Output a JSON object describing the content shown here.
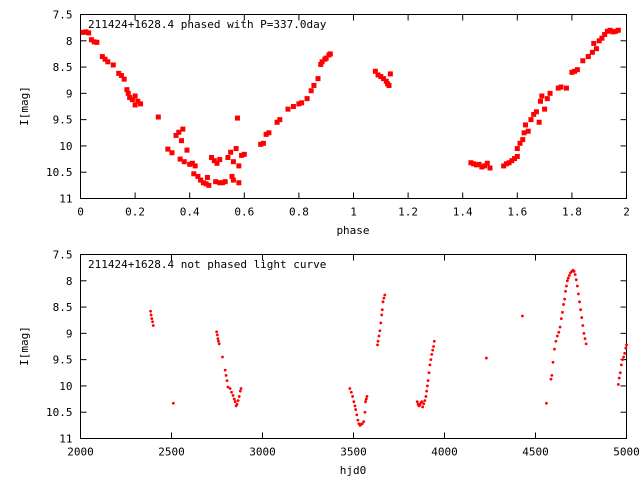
{
  "chart_data": [
    {
      "type": "scatter",
      "title": "211424+1628.4 phased with P=337.0day",
      "xlabel": "phase",
      "ylabel": "I[mag]",
      "xlim": [
        0,
        2
      ],
      "ylim": [
        7.5,
        11
      ],
      "y_inverted": true,
      "marker_color": "#ff0000",
      "x_ticks": [
        0,
        0.2,
        0.4,
        0.6,
        0.8,
        1,
        1.2,
        1.4,
        1.6,
        1.8,
        2
      ],
      "x_tick_labels": [
        "0",
        "0.2",
        "0.4",
        "0.6",
        "0.8",
        "1",
        "1.2",
        "1.4",
        "1.6",
        "1.8",
        "2"
      ],
      "y_ticks": [
        7.5,
        8,
        8.5,
        9,
        9.5,
        10,
        10.5,
        11
      ],
      "y_tick_labels": [
        "7.5",
        "8",
        "8.5",
        "9",
        "9.5",
        "10",
        "10.5",
        "11"
      ],
      "points": [
        [
          0.01,
          7.84
        ],
        [
          0.02,
          7.83
        ],
        [
          0.03,
          7.85
        ],
        [
          0.04,
          7.98
        ],
        [
          0.05,
          8.02
        ],
        [
          0.06,
          8.03
        ],
        [
          0.08,
          8.3
        ],
        [
          0.09,
          8.35
        ],
        [
          0.1,
          8.4
        ],
        [
          0.12,
          8.46
        ],
        [
          0.14,
          8.62
        ],
        [
          0.15,
          8.66
        ],
        [
          0.16,
          8.73
        ],
        [
          0.17,
          8.93
        ],
        [
          0.175,
          9.0
        ],
        [
          0.18,
          9.08
        ],
        [
          0.19,
          9.12
        ],
        [
          0.2,
          9.05
        ],
        [
          0.21,
          9.15
        ],
        [
          0.22,
          9.2
        ],
        [
          0.2,
          9.22
        ],
        [
          0.285,
          9.45
        ],
        [
          0.32,
          10.06
        ],
        [
          0.335,
          10.13
        ],
        [
          0.35,
          9.8
        ],
        [
          0.36,
          9.74
        ],
        [
          0.37,
          9.9
        ],
        [
          0.375,
          9.68
        ],
        [
          0.365,
          10.25
        ],
        [
          0.38,
          10.3
        ],
        [
          0.39,
          10.08
        ],
        [
          0.4,
          10.35
        ],
        [
          0.41,
          10.33
        ],
        [
          0.42,
          10.38
        ],
        [
          0.415,
          10.53
        ],
        [
          0.43,
          10.58
        ],
        [
          0.44,
          10.65
        ],
        [
          0.45,
          10.7
        ],
        [
          0.46,
          10.72
        ],
        [
          0.465,
          10.6
        ],
        [
          0.47,
          10.75
        ],
        [
          0.48,
          10.22
        ],
        [
          0.49,
          10.28
        ],
        [
          0.5,
          10.33
        ],
        [
          0.51,
          10.26
        ],
        [
          0.495,
          10.68
        ],
        [
          0.51,
          10.7
        ],
        [
          0.52,
          10.7
        ],
        [
          0.53,
          10.68
        ],
        [
          0.54,
          10.22
        ],
        [
          0.55,
          10.12
        ],
        [
          0.56,
          10.3
        ],
        [
          0.555,
          10.58
        ],
        [
          0.56,
          10.65
        ],
        [
          0.57,
          10.05
        ],
        [
          0.575,
          9.47
        ],
        [
          0.58,
          10.38
        ],
        [
          0.59,
          10.18
        ],
        [
          0.58,
          10.7
        ],
        [
          0.6,
          10.16
        ],
        [
          0.66,
          9.97
        ],
        [
          0.67,
          9.95
        ],
        [
          0.68,
          9.78
        ],
        [
          0.69,
          9.75
        ],
        [
          0.72,
          9.55
        ],
        [
          0.73,
          9.5
        ],
        [
          0.76,
          9.3
        ],
        [
          0.78,
          9.25
        ],
        [
          0.8,
          9.2
        ],
        [
          0.81,
          9.18
        ],
        [
          0.83,
          9.1
        ],
        [
          0.845,
          8.95
        ],
        [
          0.855,
          8.85
        ],
        [
          0.87,
          8.72
        ],
        [
          0.88,
          8.45
        ],
        [
          0.885,
          8.4
        ],
        [
          0.895,
          8.35
        ],
        [
          0.9,
          8.33
        ],
        [
          0.91,
          8.27
        ],
        [
          0.915,
          8.25
        ],
        [
          1.08,
          8.58
        ],
        [
          1.09,
          8.65
        ],
        [
          1.1,
          8.68
        ],
        [
          1.11,
          8.72
        ],
        [
          1.12,
          8.77
        ],
        [
          1.125,
          8.82
        ],
        [
          1.13,
          8.85
        ],
        [
          1.135,
          8.63
        ],
        [
          1.43,
          10.32
        ],
        [
          1.44,
          10.34
        ],
        [
          1.45,
          10.36
        ],
        [
          1.46,
          10.35
        ],
        [
          1.47,
          10.4
        ],
        [
          1.48,
          10.38
        ],
        [
          1.49,
          10.33
        ],
        [
          1.5,
          10.42
        ],
        [
          1.55,
          10.38
        ],
        [
          1.56,
          10.34
        ],
        [
          1.57,
          10.32
        ],
        [
          1.58,
          10.28
        ],
        [
          1.59,
          10.24
        ],
        [
          1.6,
          10.2
        ],
        [
          1.6,
          10.05
        ],
        [
          1.61,
          9.95
        ],
        [
          1.62,
          9.88
        ],
        [
          1.625,
          9.75
        ],
        [
          1.63,
          9.6
        ],
        [
          1.64,
          9.72
        ],
        [
          1.65,
          9.5
        ],
        [
          1.66,
          9.4
        ],
        [
          1.67,
          9.35
        ],
        [
          1.68,
          9.55
        ],
        [
          1.685,
          9.15
        ],
        [
          1.69,
          9.05
        ],
        [
          1.7,
          9.3
        ],
        [
          1.71,
          9.1
        ],
        [
          1.72,
          9.0
        ],
        [
          1.75,
          8.9
        ],
        [
          1.76,
          8.88
        ],
        [
          1.78,
          8.9
        ],
        [
          1.8,
          8.6
        ],
        [
          1.81,
          8.58
        ],
        [
          1.82,
          8.55
        ],
        [
          1.84,
          8.38
        ],
        [
          1.86,
          8.3
        ],
        [
          1.875,
          8.22
        ],
        [
          1.88,
          8.05
        ],
        [
          1.89,
          8.15
        ],
        [
          1.9,
          8.0
        ],
        [
          1.91,
          7.95
        ],
        [
          1.92,
          7.88
        ],
        [
          1.93,
          7.82
        ],
        [
          1.94,
          7.8
        ],
        [
          1.95,
          7.83
        ],
        [
          1.96,
          7.82
        ],
        [
          1.97,
          7.8
        ]
      ]
    },
    {
      "type": "scatter",
      "title": "211424+1628.4 not phased light curve",
      "xlabel": "hjd0",
      "ylabel": "I[mag]",
      "xlim": [
        2000,
        5000
      ],
      "ylim": [
        7.5,
        11
      ],
      "y_inverted": true,
      "marker_color": "#ff0000",
      "x_ticks": [
        2000,
        2500,
        3000,
        3500,
        4000,
        4500,
        5000
      ],
      "x_tick_labels": [
        "2000",
        "2500",
        "3000",
        "3500",
        "4000",
        "4500",
        "5000"
      ],
      "y_ticks": [
        7.5,
        8,
        8.5,
        9,
        9.5,
        10,
        10.5,
        11
      ],
      "y_tick_labels": [
        "7.5",
        "8",
        "8.5",
        "9",
        "9.5",
        "10",
        "10.5",
        "11"
      ],
      "points": [
        [
          2385,
          8.58
        ],
        [
          2388,
          8.65
        ],
        [
          2392,
          8.72
        ],
        [
          2396,
          8.78
        ],
        [
          2400,
          8.85
        ],
        [
          2510,
          10.33
        ],
        [
          2748,
          8.97
        ],
        [
          2752,
          9.03
        ],
        [
          2755,
          9.1
        ],
        [
          2758,
          9.15
        ],
        [
          2762,
          9.2
        ],
        [
          2780,
          9.45
        ],
        [
          2795,
          9.7
        ],
        [
          2800,
          9.8
        ],
        [
          2805,
          9.9
        ],
        [
          2810,
          10.02
        ],
        [
          2822,
          10.05
        ],
        [
          2830,
          10.12
        ],
        [
          2838,
          10.18
        ],
        [
          2845,
          10.25
        ],
        [
          2850,
          10.3
        ],
        [
          2855,
          10.38
        ],
        [
          2860,
          10.35
        ],
        [
          2866,
          10.28
        ],
        [
          2872,
          10.2
        ],
        [
          2878,
          10.1
        ],
        [
          2882,
          10.05
        ],
        [
          3480,
          10.05
        ],
        [
          3488,
          10.12
        ],
        [
          3495,
          10.2
        ],
        [
          3502,
          10.3
        ],
        [
          3508,
          10.38
        ],
        [
          3512,
          10.45
        ],
        [
          3518,
          10.55
        ],
        [
          3524,
          10.65
        ],
        [
          3530,
          10.72
        ],
        [
          3536,
          10.75
        ],
        [
          3542,
          10.73
        ],
        [
          3548,
          10.72
        ],
        [
          3556,
          10.68
        ],
        [
          3563,
          10.5
        ],
        [
          3566,
          10.3
        ],
        [
          3570,
          10.25
        ],
        [
          3574,
          10.2
        ],
        [
          3632,
          9.22
        ],
        [
          3635,
          9.15
        ],
        [
          3640,
          9.05
        ],
        [
          3645,
          8.95
        ],
        [
          3650,
          8.8
        ],
        [
          3655,
          8.65
        ],
        [
          3658,
          8.55
        ],
        [
          3662,
          8.4
        ],
        [
          3667,
          8.33
        ],
        [
          3672,
          8.27
        ],
        [
          3850,
          10.3
        ],
        [
          3855,
          10.35
        ],
        [
          3860,
          10.38
        ],
        [
          3865,
          10.36
        ],
        [
          3870,
          10.32
        ],
        [
          3876,
          10.3
        ],
        [
          3880,
          10.4
        ],
        [
          3886,
          10.34
        ],
        [
          3892,
          10.28
        ],
        [
          3898,
          10.2
        ],
        [
          3902,
          10.1
        ],
        [
          3906,
          10.0
        ],
        [
          3910,
          9.9
        ],
        [
          3915,
          9.75
        ],
        [
          3920,
          9.6
        ],
        [
          3925,
          9.5
        ],
        [
          3930,
          9.4
        ],
        [
          3935,
          9.32
        ],
        [
          3940,
          9.25
        ],
        [
          3944,
          9.15
        ],
        [
          4230,
          9.47
        ],
        [
          4428,
          8.67
        ],
        [
          4560,
          10.33
        ],
        [
          4585,
          9.87
        ],
        [
          4590,
          9.8
        ],
        [
          4596,
          9.55
        ],
        [
          4604,
          9.3
        ],
        [
          4612,
          9.15
        ],
        [
          4620,
          9.05
        ],
        [
          4628,
          8.98
        ],
        [
          4635,
          8.88
        ],
        [
          4642,
          8.72
        ],
        [
          4648,
          8.6
        ],
        [
          4654,
          8.45
        ],
        [
          4660,
          8.35
        ],
        [
          4665,
          8.2
        ],
        [
          4670,
          8.1
        ],
        [
          4675,
          8.0
        ],
        [
          4680,
          7.95
        ],
        [
          4686,
          7.9
        ],
        [
          4692,
          7.85
        ],
        [
          4700,
          7.82
        ],
        [
          4706,
          7.8
        ],
        [
          4712,
          7.82
        ],
        [
          4718,
          7.88
        ],
        [
          4724,
          7.98
        ],
        [
          4730,
          8.1
        ],
        [
          4736,
          8.25
        ],
        [
          4742,
          8.4
        ],
        [
          4748,
          8.55
        ],
        [
          4754,
          8.7
        ],
        [
          4760,
          8.85
        ],
        [
          4766,
          9.0
        ],
        [
          4772,
          9.1
        ],
        [
          4778,
          9.2
        ],
        [
          4955,
          9.97
        ],
        [
          4960,
          9.85
        ],
        [
          4966,
          9.75
        ],
        [
          4972,
          9.6
        ],
        [
          4978,
          9.5
        ],
        [
          4984,
          9.45
        ],
        [
          4990,
          9.38
        ],
        [
          4996,
          9.28
        ],
        [
          5000,
          9.22
        ]
      ]
    }
  ]
}
